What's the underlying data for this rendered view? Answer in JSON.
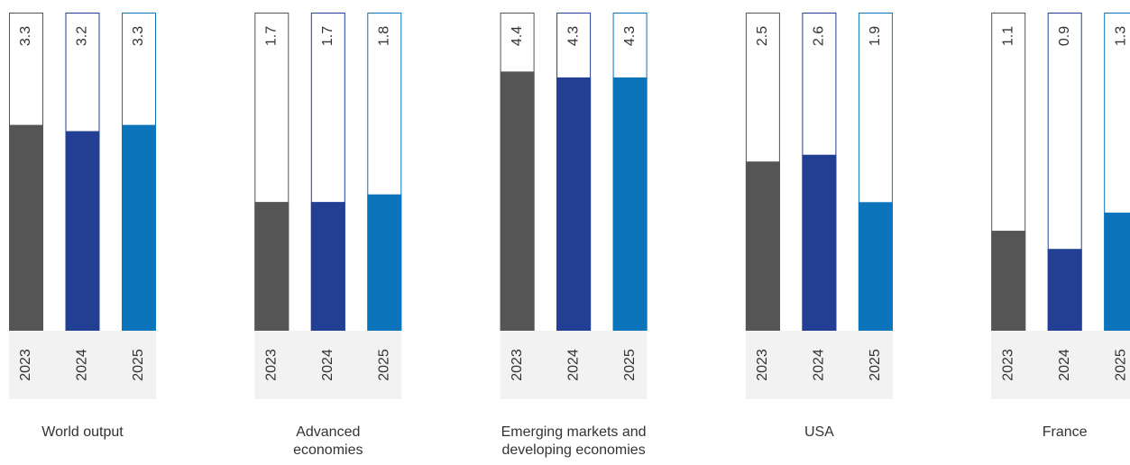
{
  "chart_data": [
    {
      "type": "bar",
      "title": "World output",
      "categories": [
        "2023",
        "2024",
        "2025"
      ],
      "values": [
        3.3,
        3.2,
        3.3
      ],
      "colors": [
        "#555555",
        "#223f94",
        "#0c74bb"
      ],
      "ylim": [
        0,
        5.1
      ]
    },
    {
      "type": "bar",
      "title": "Advanced economies",
      "categories": [
        "2023",
        "2024",
        "2025"
      ],
      "values": [
        1.7,
        1.7,
        1.8
      ],
      "colors": [
        "#555555",
        "#223f94",
        "#0c74bb"
      ],
      "ylim": [
        0,
        4.2
      ]
    },
    {
      "type": "bar",
      "title": "Emerging markets and developing economies",
      "categories": [
        "2023",
        "2024",
        "2025"
      ],
      "values": [
        4.4,
        4.3,
        4.3
      ],
      "colors": [
        "#555555",
        "#223f94",
        "#0c74bb"
      ],
      "ylim": [
        0,
        5.4
      ]
    },
    {
      "type": "bar",
      "title": "USA",
      "categories": [
        "2023",
        "2024",
        "2025"
      ],
      "values": [
        2.5,
        2.6,
        1.9
      ],
      "colors": [
        "#555555",
        "#223f94",
        "#0c74bb"
      ],
      "ylim": [
        0,
        4.7
      ]
    },
    {
      "type": "bar",
      "title": "France",
      "categories": [
        "2023",
        "2024",
        "2025"
      ],
      "values": [
        1.1,
        0.9,
        1.3
      ],
      "colors": [
        "#555555",
        "#223f94",
        "#0c74bb"
      ],
      "ylim": [
        0,
        3.5
      ]
    }
  ]
}
